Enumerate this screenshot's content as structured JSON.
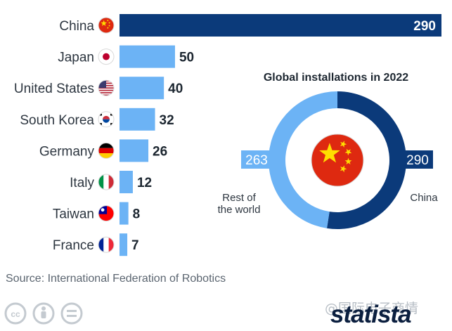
{
  "chart_data": [
    {
      "type": "bar",
      "orientation": "horizontal",
      "categories": [
        "China",
        "Japan",
        "United States",
        "South Korea",
        "Germany",
        "Italy",
        "Taiwan",
        "France"
      ],
      "values": [
        290,
        50,
        40,
        32,
        26,
        12,
        8,
        7
      ],
      "flag_icons": [
        "china-flag-icon",
        "japan-flag-icon",
        "usa-flag-icon",
        "south-korea-flag-icon",
        "germany-flag-icon",
        "italy-flag-icon",
        "taiwan-flag-icon",
        "france-flag-icon"
      ],
      "colors": {
        "highlight": "#0b3a7a",
        "default": "#6cb3f5"
      },
      "xlim": [
        0,
        290
      ]
    },
    {
      "type": "pie",
      "style": "donut",
      "title": "Global installations in 2022",
      "slices": [
        {
          "label": "China",
          "value": 290,
          "color": "#0b3a7a"
        },
        {
          "label": "Rest of the world",
          "value": 263,
          "color": "#6cb3f5"
        }
      ],
      "center_icon": "china-flag-icon"
    }
  ],
  "footer": {
    "source": "Source: International Federation of Robotics",
    "brand": "statista",
    "watermark": "@国际电子商情",
    "license_icons": [
      "cc-icon",
      "by-icon",
      "nd-icon"
    ]
  }
}
